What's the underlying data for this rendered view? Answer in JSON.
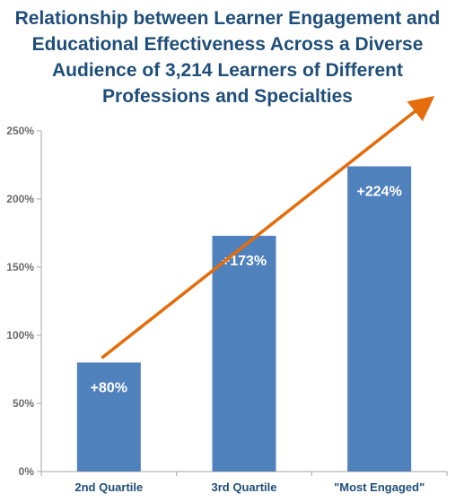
{
  "chart_data": {
    "type": "bar",
    "title_lines": [
      "Relationship between Learner Engagement and",
      "Educational Effectiveness Across a Diverse",
      "Audience of 3,214 Learners of Different",
      "Professions and Specialties"
    ],
    "categories": [
      "2nd Quartile",
      "3rd Quartile",
      "\"Most Engaged\""
    ],
    "values": [
      80,
      173,
      224
    ],
    "data_labels": [
      "+80%",
      "+173%",
      "+224%"
    ],
    "y_ticks": [
      "0%",
      "50%",
      "100%",
      "150%",
      "200%",
      "250%"
    ],
    "ylim": [
      0,
      250
    ],
    "grid": false,
    "trend_arrow": true,
    "colors": {
      "bar": "#4f81bd",
      "arrow": "#e46c0a",
      "title": "#1f4e79",
      "axis": "#a6a6a6"
    }
  }
}
